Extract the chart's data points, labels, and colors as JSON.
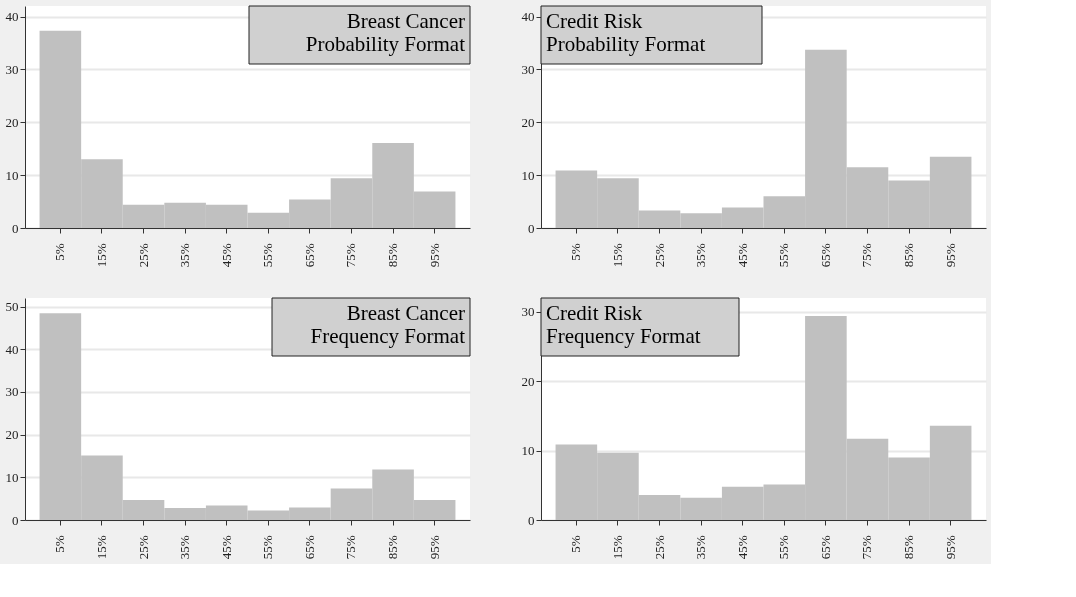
{
  "chart_data": [
    {
      "type": "bar",
      "title": "Breast Cancer\nProbability Format",
      "categories": [
        "5%",
        "15%",
        "25%",
        "35%",
        "45%",
        "55%",
        "65%",
        "75%",
        "85%",
        "95%"
      ],
      "values": [
        37.3,
        13.0,
        4.4,
        4.8,
        4.4,
        2.9,
        5.4,
        9.4,
        16.1,
        6.9
      ],
      "color": "#c0c0c0",
      "ylim": [
        0,
        42
      ],
      "yticks": [
        0,
        10,
        20,
        30,
        40
      ],
      "grid": "y"
    },
    {
      "type": "bar",
      "title": "Credit Risk\nProbability Format",
      "categories": [
        "5%",
        "15%",
        "25%",
        "35%",
        "45%",
        "55%",
        "65%",
        "75%",
        "85%",
        "95%"
      ],
      "values": [
        10.9,
        9.4,
        3.3,
        2.8,
        3.9,
        6.0,
        33.7,
        11.5,
        9.0,
        13.5
      ],
      "color": "#c0c0c0",
      "ylim": [
        0,
        42
      ],
      "yticks": [
        0,
        10,
        20,
        30,
        40
      ],
      "grid": "y"
    },
    {
      "type": "bar",
      "title": "Breast Cancer\nFrequency Format",
      "categories": [
        "5%",
        "15%",
        "25%",
        "35%",
        "45%",
        "55%",
        "65%",
        "75%",
        "85%",
        "95%"
      ],
      "values": [
        48.4,
        15.1,
        4.7,
        2.8,
        3.4,
        2.2,
        2.9,
        7.4,
        11.8,
        4.7
      ],
      "color": "#c0c0c0",
      "ylim": [
        0,
        52
      ],
      "yticks": [
        0,
        10,
        20,
        30,
        40,
        50
      ],
      "grid": "y"
    },
    {
      "type": "bar",
      "title": "Credit Risk\nFrequency Format",
      "categories": [
        "5%",
        "15%",
        "25%",
        "35%",
        "45%",
        "55%",
        "65%",
        "75%",
        "85%",
        "95%"
      ],
      "values": [
        10.9,
        9.7,
        3.6,
        3.2,
        4.8,
        5.1,
        29.4,
        11.7,
        9.0,
        13.6
      ],
      "color": "#c0c0c0",
      "ylim": [
        0,
        32
      ],
      "yticks": [
        0,
        10,
        20,
        30
      ],
      "grid": "y"
    }
  ]
}
